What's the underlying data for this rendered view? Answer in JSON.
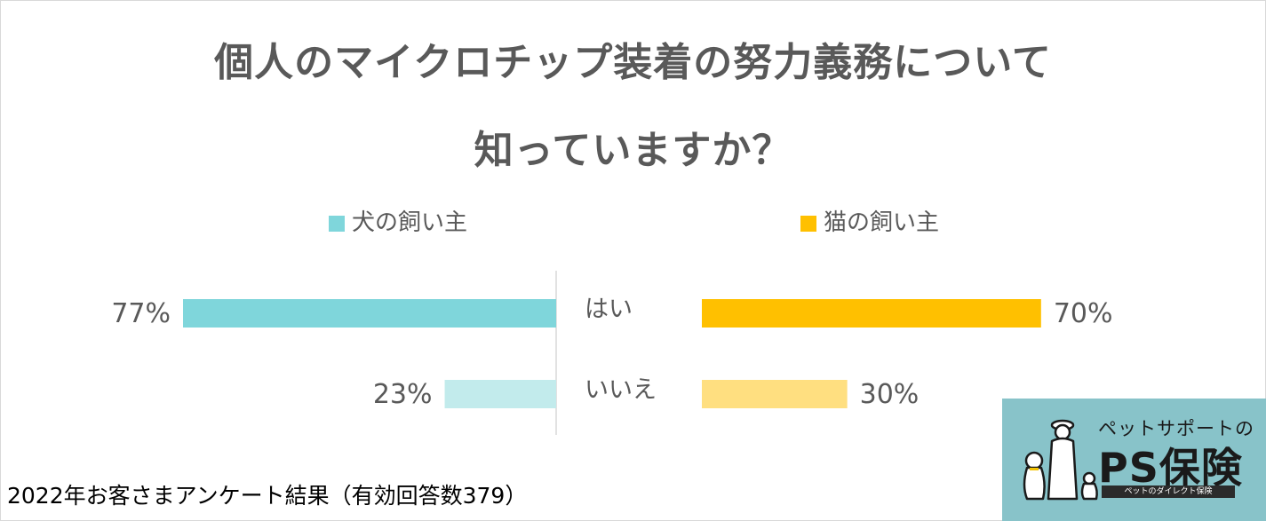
{
  "title_line1": "個人のマイクロチップ装着の努力義務について",
  "title_line2": "知っていますか？",
  "footer": "2022年お客さまアンケート結果（有効回答数379）",
  "logo": {
    "top": "ペットサポートの",
    "main": "PS保険",
    "sub": "ペットのダイレクト保険"
  },
  "colors": {
    "dog_yes": "#7fd6db",
    "dog_no": "#c2ebec",
    "cat_yes": "#ffc000",
    "cat_no": "#ffdf80",
    "text": "#595959"
  },
  "chart_data": {
    "type": "bar",
    "orientation": "horizontal-diverging",
    "categories": [
      "はい",
      "いいえ"
    ],
    "series": [
      {
        "name": "犬の飼い主",
        "values": [
          77,
          23
        ],
        "labels": [
          "77%",
          "23%"
        ]
      },
      {
        "name": "猫の飼い主",
        "values": [
          70,
          30
        ],
        "labels": [
          "70%",
          "30%"
        ]
      }
    ],
    "unit": "%",
    "xlim": [
      0,
      100
    ],
    "legend": "top",
    "grid": false
  }
}
